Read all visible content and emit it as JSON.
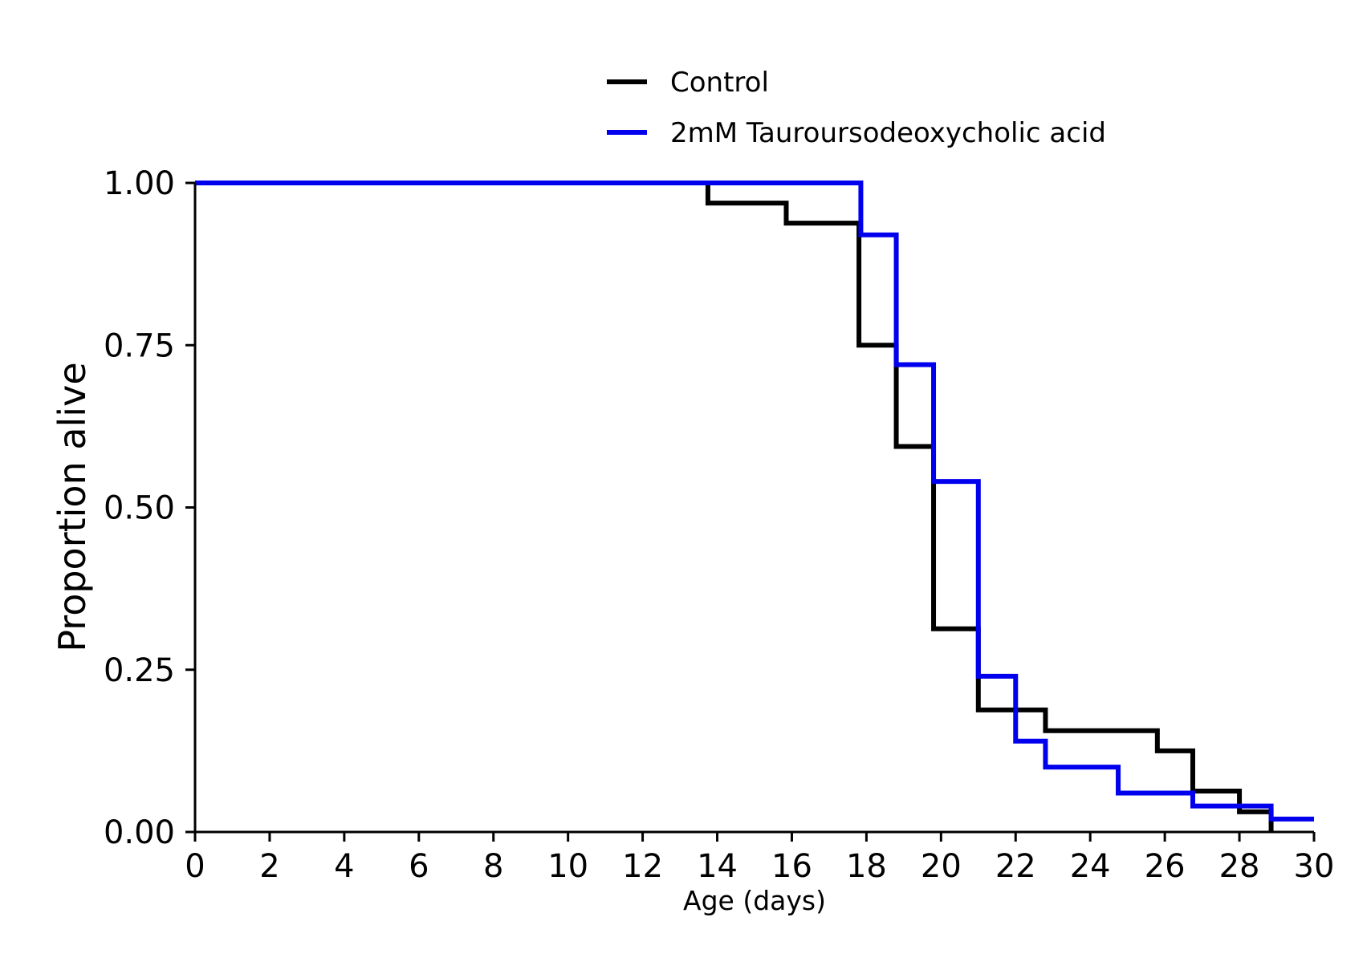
{
  "chart_data": {
    "type": "line",
    "step": true,
    "xlabel": "Age (days)",
    "ylabel": "Proportion alive",
    "xlim": [
      0,
      30
    ],
    "ylim": [
      0,
      1
    ],
    "xticks": [
      0,
      2,
      4,
      6,
      8,
      10,
      12,
      14,
      16,
      18,
      20,
      22,
      24,
      26,
      28,
      30
    ],
    "yticks": [
      "0.00",
      "0.25",
      "0.50",
      "0.75",
      "1.00"
    ],
    "grid": false,
    "legend_position": "top-center",
    "series": [
      {
        "name": "Control",
        "color": "#000000",
        "x": [
          0,
          13.75,
          15.85,
          17.8,
          18.8,
          19.8,
          21.0,
          22.8,
          25.8,
          26.75,
          28.0,
          28.85
        ],
        "y": [
          1.0,
          0.969,
          0.938,
          0.75,
          0.594,
          0.313,
          0.188,
          0.156,
          0.125,
          0.063,
          0.031,
          0.0
        ]
      },
      {
        "name": "2mM Tauroursodeoxycholic acid",
        "color": "#0000ee",
        "x": [
          0,
          17.85,
          18.8,
          19.8,
          21.0,
          22.0,
          22.8,
          24.75,
          26.75,
          28.85,
          30.0
        ],
        "y": [
          1.0,
          0.92,
          0.72,
          0.54,
          0.24,
          0.14,
          0.1,
          0.06,
          0.04,
          0.02,
          0.02
        ]
      }
    ]
  }
}
